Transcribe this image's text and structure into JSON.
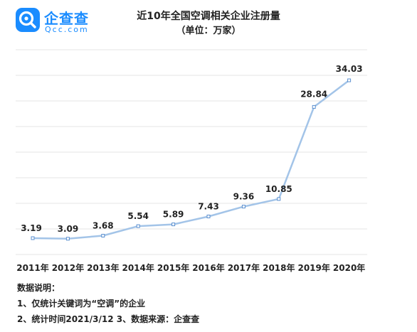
{
  "logo": {
    "name": "企查查",
    "domain": "Qcc.com"
  },
  "colors": {
    "brand": "#1a8cff",
    "line": "#a3c4e8",
    "marker": "#5b8fcf",
    "grid": "#e4e4e4",
    "text": "#222222"
  },
  "chart_data": {
    "type": "line",
    "title": "近10年全国空调相关企业注册量",
    "subtitle": "（单位：万家）",
    "xlabel": "",
    "ylabel": "",
    "categories": [
      "2011年",
      "2012年",
      "2013年",
      "2014年",
      "2015年",
      "2016年",
      "2017年",
      "2018年",
      "2019年",
      "2020年"
    ],
    "series": [
      {
        "values": [
          3.19,
          3.09,
          3.68,
          5.54,
          5.89,
          7.43,
          9.36,
          10.85,
          28.84,
          34.03
        ],
        "labels": [
          "3.19",
          "3.09",
          "3.68",
          "5.54",
          "5.89",
          "7.43",
          "9.36",
          "10.85",
          "28.84",
          "34.03"
        ]
      }
    ],
    "ylim": [
      0,
      40
    ],
    "y_gridlines": [
      0,
      5,
      10,
      15,
      20,
      25,
      30,
      35,
      40
    ],
    "y_tick_labels_shown": false,
    "grid": true,
    "legend": "none"
  },
  "notes": {
    "heading": "数据说明：",
    "line1": "1、仅统计关键词为“空调”的企业",
    "line2": "2、统计时间2021/3/12   3、数据来源：企查查"
  }
}
